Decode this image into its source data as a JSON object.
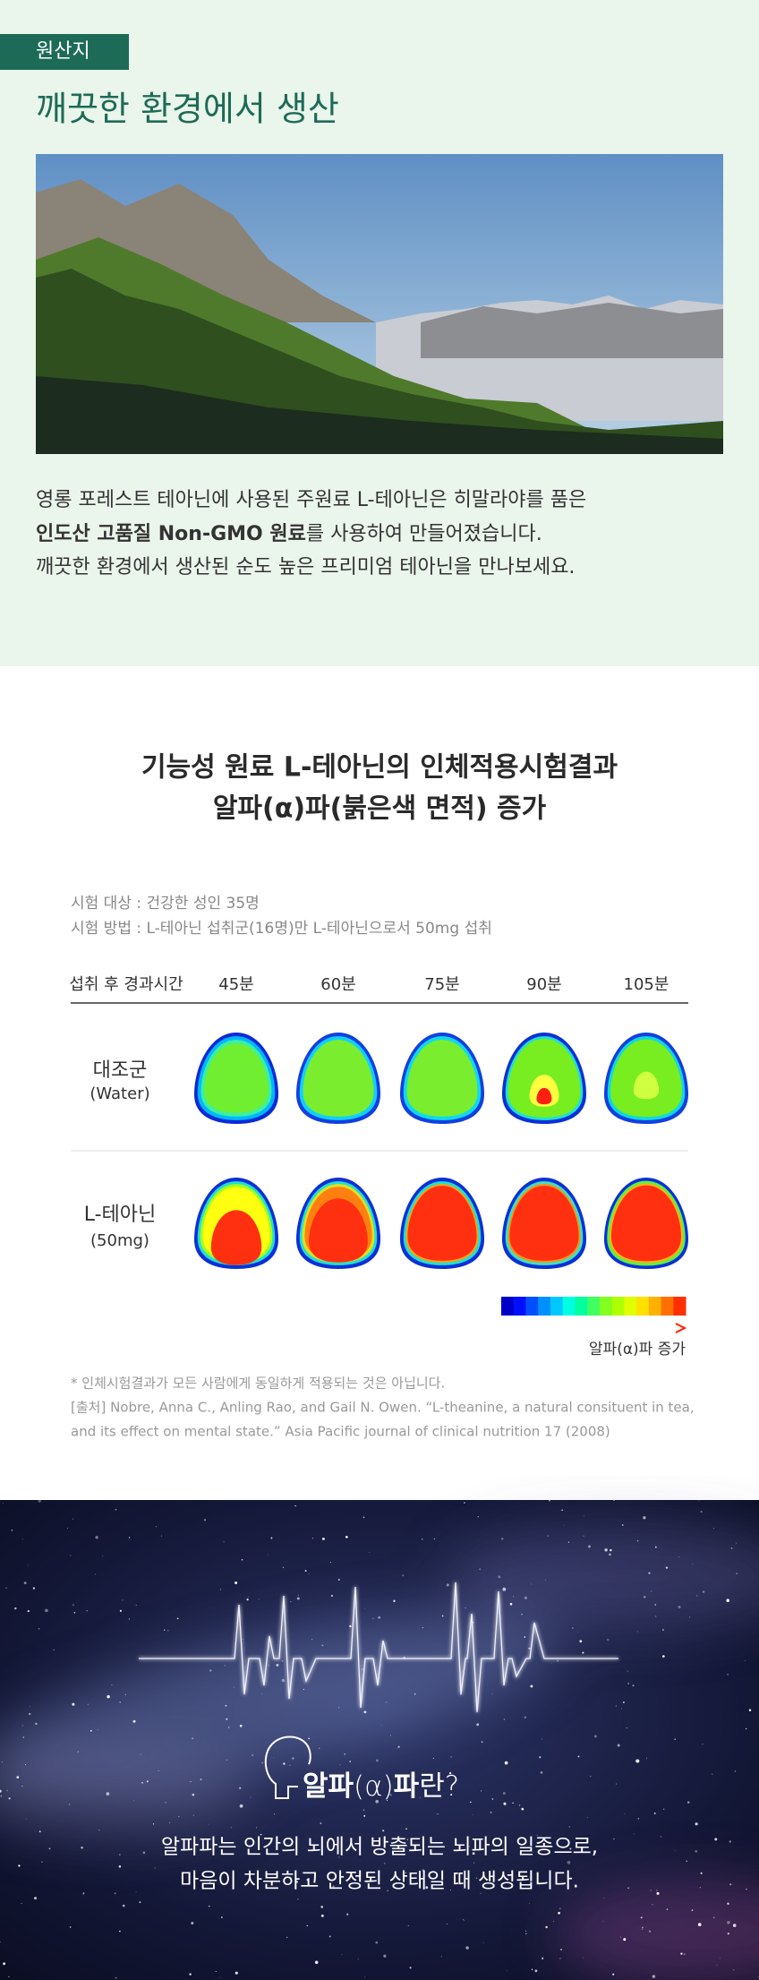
{
  "origin": {
    "tag": "원산지",
    "title": "깨끗한 환경에서 생산",
    "line1": "영롱 포레스트 테아닌에 사용된 주원료 L-테아닌은 히말라야를 품은",
    "line2_bold": "인도산 고품질 Non-GMO 원료",
    "line2_rest": "를 사용하여 만들어졌습니다.",
    "line3": "깨끗한 환경에서 생산된 순도 높은 프리미엄 테아닌을 만나보세요."
  },
  "study": {
    "title": [
      "기능성 원료 L-테아닌의 인체적용시험결과",
      "알파(α)파(붉은색 면적) 증가"
    ],
    "info": [
      "시험 대상  :  건강한 성인 35명",
      "시험 방법  :  L-테아닌 섭취군(16명)만 L-테아닌으로서 50mg 섭취"
    ],
    "header": "섭취 후 경과시간",
    "times": [
      "45분",
      "60분",
      "75분",
      "90분",
      "105분"
    ],
    "rows": [
      {
        "name": "대조군",
        "sub": "(Water)"
      },
      {
        "name": "L-테아닌",
        "sub": "(50mg)"
      }
    ],
    "legend": "알파(α)파 증가",
    "notes": [
      "* 인체시험결과가 모든 사람에게 동일하게 적용되는 것은 아닙니다.",
      "[출처] Nobre, Anna C., Anling Rao, and Gail N. Owen. “L-theanine, a natural consituent in tea,",
      "and its effect on mental state.” Asia Pacific journal of clinical nutrition 17 (2008)"
    ]
  },
  "alpha": {
    "title": [
      "알파",
      "(α)",
      "파",
      "란?"
    ],
    "lines": [
      "알파파는 인간의 뇌에서 방출되는 뇌파의 일종으로,",
      "마음이 차분하고 안정된 상태일 때 생성됩니다."
    ]
  }
}
